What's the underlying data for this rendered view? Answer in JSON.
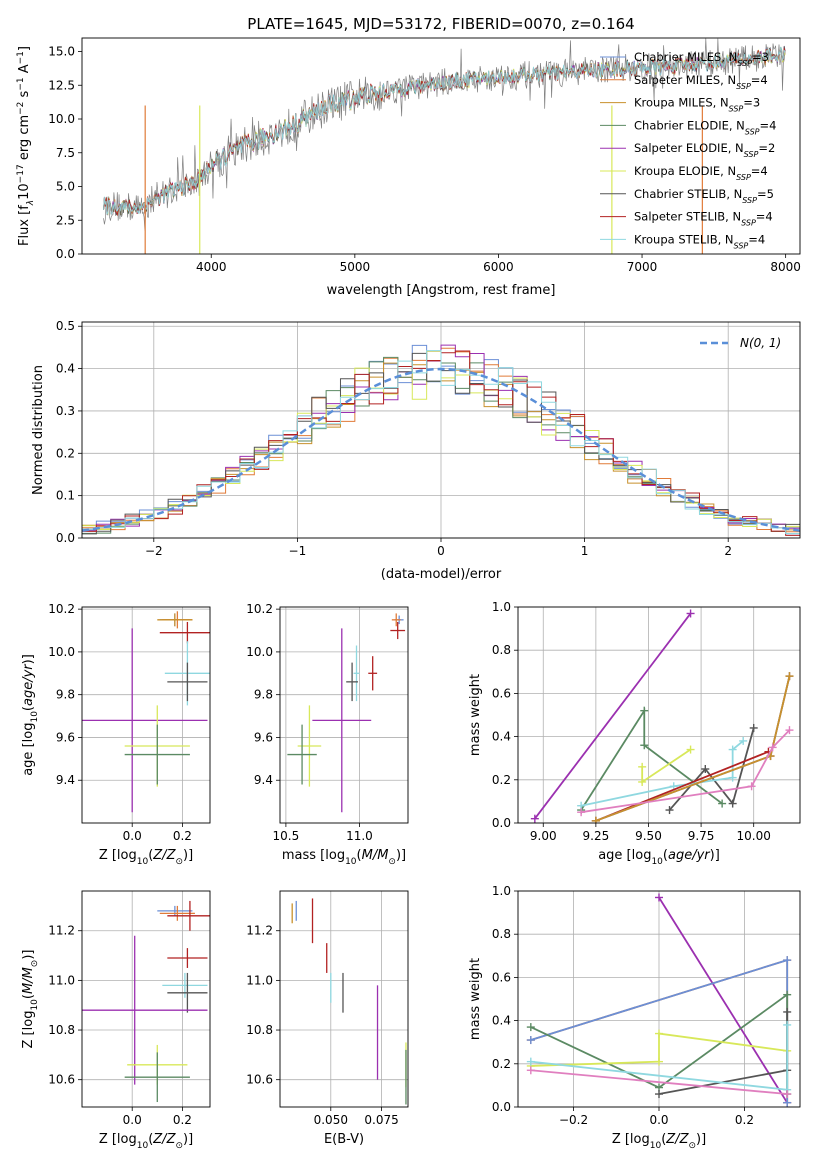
{
  "figure_title": "PLATE=1645, MJD=53172, FIBERID=0070, z=0.164",
  "series": [
    {
      "key": "chab_miles",
      "label": "Chabrier MILES, N",
      "sub": "SSP",
      "n": "=3",
      "color": "#6b8fd6"
    },
    {
      "key": "salp_miles",
      "label": "Salpeter MILES, N",
      "sub": "SSP",
      "n": "=4",
      "color": "#e07b39"
    },
    {
      "key": "krou_miles",
      "label": "Kroupa MILES, N",
      "sub": "SSP",
      "n": "=3",
      "color": "#c8902c"
    },
    {
      "key": "chab_elodie",
      "label": "Chabrier ELODIE, N",
      "sub": "SSP",
      "n": "=4",
      "color": "#5b8a63"
    },
    {
      "key": "salp_elodie",
      "label": "Salpeter ELODIE, N",
      "sub": "SSP",
      "n": "=2",
      "color": "#9b30b0"
    },
    {
      "key": "krou_elodie",
      "label": "Kroupa ELODIE, N",
      "sub": "SSP",
      "n": "=4",
      "color": "#d8e85a"
    },
    {
      "key": "chab_stelib",
      "label": "Chabrier STELIB, N",
      "sub": "SSP",
      "n": "=5",
      "color": "#555555"
    },
    {
      "key": "salp_stelib",
      "label": "Salpeter STELIB, N",
      "sub": "SSP",
      "n": "=4",
      "color": "#b22222"
    },
    {
      "key": "krou_stelib",
      "label": "Kroupa STELIB, N",
      "sub": "SSP",
      "n": "=4",
      "color": "#8fd8e0"
    }
  ],
  "chart_data": [
    {
      "id": "spectrum",
      "type": "line",
      "xlabel": "wavelength [Angstrom, rest frame]",
      "ylabel": "Flux [f",
      "xlim": [
        3100,
        8100
      ],
      "ylim": [
        0,
        16
      ],
      "xticks": [
        4000,
        5000,
        6000,
        7000,
        8000
      ],
      "yticks": [
        0.0,
        2.5,
        5.0,
        7.5,
        10.0,
        12.5,
        15.0
      ],
      "grid": false,
      "legend": "right",
      "data_color": "#808080",
      "continuum": [
        [
          3250,
          3.6
        ],
        [
          3500,
          3.4
        ],
        [
          3700,
          4.6
        ],
        [
          3900,
          5.3
        ],
        [
          4000,
          6.6
        ],
        [
          4200,
          7.9
        ],
        [
          4500,
          9.2
        ],
        [
          4800,
          10.9
        ],
        [
          5000,
          11.6
        ],
        [
          5300,
          12.2
        ],
        [
          5600,
          12.7
        ],
        [
          6000,
          13.1
        ],
        [
          6400,
          13.4
        ],
        [
          6800,
          13.7
        ],
        [
          7200,
          13.9
        ],
        [
          7600,
          14.3
        ],
        [
          8000,
          14.8
        ]
      ]
    },
    {
      "id": "residuals",
      "type": "histogram",
      "xlabel": "(data-model)/error",
      "ylabel": "Normed distribution",
      "xlim": [
        -2.5,
        2.5
      ],
      "ylim": [
        0,
        0.51
      ],
      "xticks": [
        -2,
        -1,
        0,
        1,
        2
      ],
      "yticks": [
        0.0,
        0.1,
        0.2,
        0.3,
        0.4,
        0.5
      ],
      "grid": true,
      "legend": "top-right",
      "legend_label": "N(0, 1)",
      "reference_color": "#5a8fd8",
      "bin_width": 0.1,
      "bin_start": -2.5
    },
    {
      "id": "age_vs_Z",
      "type": "errorbar",
      "xlabel": "Z [log",
      "ylabel": "age [log",
      "xlim": [
        -0.2,
        0.31
      ],
      "ylim": [
        9.2,
        10.21
      ],
      "xticks": [
        0.0,
        0.2
      ],
      "yticks": [
        9.4,
        9.6,
        9.8,
        10.0,
        10.2
      ],
      "grid": true,
      "points": [
        {
          "s": "chab_miles",
          "x": 0.17,
          "y": 10.15,
          "xerr": 0.06,
          "yerr": 0.03
        },
        {
          "s": "salp_miles",
          "x": 0.18,
          "y": 10.15,
          "xerr": 0.06,
          "yerr": 0.04
        },
        {
          "s": "krou_miles",
          "x": 0.17,
          "y": 10.15,
          "xerr": 0.07,
          "yerr": 0.03
        },
        {
          "s": "salp_stelib",
          "x": 0.22,
          "y": 10.09,
          "xerr": 0.11,
          "yerr": 0.05
        },
        {
          "s": "krou_stelib",
          "x": 0.22,
          "y": 9.9,
          "xerr": 0.09,
          "yerr": 0.15
        },
        {
          "s": "chab_stelib",
          "x": 0.22,
          "y": 9.86,
          "xerr": 0.08,
          "yerr": 0.09
        },
        {
          "s": "salp_elodie",
          "x": 0.0,
          "y": 9.68,
          "xerr": 0.3,
          "yerr": 0.43
        },
        {
          "s": "krou_elodie",
          "x": 0.1,
          "y": 9.56,
          "xerr": 0.13,
          "yerr": 0.19
        },
        {
          "s": "chab_elodie",
          "x": 0.1,
          "y": 9.52,
          "xerr": 0.13,
          "yerr": 0.14
        }
      ]
    },
    {
      "id": "age_vs_mass",
      "type": "errorbar",
      "xlabel": "mass [log",
      "xlim": [
        10.46,
        11.33
      ],
      "ylim": [
        9.2,
        10.21
      ],
      "xticks": [
        10.5,
        11.0
      ],
      "yticks": [
        9.4,
        9.6,
        9.8,
        10.0,
        10.2
      ],
      "grid": true,
      "points": [
        {
          "s": "chab_miles",
          "x": 11.27,
          "y": 10.15,
          "xerr": 0.03,
          "yerr": 0.02
        },
        {
          "s": "salp_miles",
          "x": 11.25,
          "y": 10.15,
          "xerr": 0.03,
          "yerr": 0.03
        },
        {
          "s": "salp_stelib",
          "x": 11.26,
          "y": 10.1,
          "xerr": 0.05,
          "yerr": 0.04
        },
        {
          "s": "krou_stelib",
          "x": 10.98,
          "y": 9.9,
          "xerr": 0.02,
          "yerr": 0.13
        },
        {
          "s": "salp_stelib",
          "x": 11.09,
          "y": 9.9,
          "xerr": 0.03,
          "yerr": 0.08
        },
        {
          "s": "chab_stelib",
          "x": 10.95,
          "y": 9.86,
          "xerr": 0.04,
          "yerr": 0.09
        },
        {
          "s": "salp_elodie",
          "x": 10.88,
          "y": 9.68,
          "xerr": 0.2,
          "yerr": 0.43
        },
        {
          "s": "krou_elodie",
          "x": 10.66,
          "y": 9.56,
          "xerr": 0.08,
          "yerr": 0.19
        },
        {
          "s": "chab_elodie",
          "x": 10.61,
          "y": 9.52,
          "xerr": 0.1,
          "yerr": 0.14
        }
      ]
    },
    {
      "id": "weight_vs_age",
      "type": "line",
      "xlabel": "age  [log",
      "ylabel": "mass weight",
      "xlim": [
        8.88,
        10.22
      ],
      "ylim": [
        0,
        1.0
      ],
      "xticks": [
        9.0,
        9.25,
        9.5,
        9.75,
        10.0
      ],
      "yticks": [
        0.0,
        0.2,
        0.4,
        0.6,
        0.8,
        1.0
      ],
      "grid": true,
      "lines": [
        {
          "s": "salp_elodie",
          "pts": [
            [
              8.96,
              0.02
            ],
            [
              9.7,
              0.97
            ]
          ]
        },
        {
          "s": "chab_elodie",
          "pts": [
            [
              9.18,
              0.06
            ],
            [
              9.48,
              0.52
            ],
            [
              9.48,
              0.36
            ],
            [
              9.85,
              0.09
            ]
          ]
        },
        {
          "s": "krou_elodie",
          "pts": [
            [
              9.47,
              0.26
            ],
            [
              9.47,
              0.19
            ],
            [
              9.7,
              0.34
            ]
          ]
        },
        {
          "s": "chab_stelib",
          "pts": [
            [
              9.6,
              0.06
            ],
            [
              9.77,
              0.25
            ],
            [
              9.9,
              0.09
            ],
            [
              10.0,
              0.44
            ]
          ]
        },
        {
          "s": "krou_stelib",
          "pts": [
            [
              9.18,
              0.08
            ],
            [
              9.62,
              0.17
            ],
            [
              9.9,
              0.21
            ],
            [
              9.9,
              0.34
            ],
            [
              9.95,
              0.38
            ]
          ]
        },
        {
          "s": "salp_stelib",
          "pts": [
            [
              9.25,
              0.01
            ],
            [
              10.07,
              0.33
            ]
          ]
        },
        {
          "s": "salp_miles",
          "pts": [
            [
              9.25,
              0.01
            ],
            [
              10.08,
              0.31
            ],
            [
              10.17,
              0.68
            ]
          ]
        },
        {
          "s": "chab_miles",
          "pts": [
            [
              9.25,
              0.01
            ],
            [
              10.08,
              0.31
            ],
            [
              10.17,
              0.68
            ]
          ]
        },
        {
          "s": "krou_miles",
          "pts": [
            [
              9.25,
              0.01
            ],
            [
              10.08,
              0.31
            ],
            [
              10.17,
              0.68
            ]
          ]
        },
        {
          "s": "salp_stelib",
          "pts": [
            [
              9.18,
              0.05
            ],
            [
              9.99,
              0.17
            ],
            [
              10.09,
              0.35
            ],
            [
              10.17,
              0.43
            ]
          ],
          "color": "#e07fbf"
        }
      ]
    },
    {
      "id": "mass_vs_Z",
      "type": "errorbar",
      "xlabel": "Z [log",
      "ylabel": "mass [log",
      "xlim": [
        -0.2,
        0.31
      ],
      "ylim": [
        10.49,
        11.36
      ],
      "xticks": [
        0.0,
        0.2
      ],
      "yticks": [
        10.6,
        10.8,
        11.0,
        11.2
      ],
      "grid": true,
      "points": [
        {
          "s": "chab_miles",
          "x": 0.17,
          "y": 11.28,
          "xerr": 0.07,
          "yerr": 0.02
        },
        {
          "s": "salp_miles",
          "x": 0.18,
          "y": 11.27,
          "xerr": 0.07,
          "yerr": 0.03
        },
        {
          "s": "salp_stelib",
          "x": 0.23,
          "y": 11.26,
          "xerr": 0.09,
          "yerr": 0.06
        },
        {
          "s": "salp_stelib",
          "x": 0.22,
          "y": 11.09,
          "xerr": 0.08,
          "yerr": 0.04
        },
        {
          "s": "krou_stelib",
          "x": 0.21,
          "y": 10.98,
          "xerr": 0.09,
          "yerr": 0.05
        },
        {
          "s": "chab_stelib",
          "x": 0.22,
          "y": 10.95,
          "xerr": 0.08,
          "yerr": 0.08
        },
        {
          "s": "salp_elodie",
          "x": 0.01,
          "y": 10.88,
          "xerr": 0.29,
          "yerr": 0.3
        },
        {
          "s": "krou_elodie",
          "x": 0.1,
          "y": 10.66,
          "xerr": 0.12,
          "yerr": 0.08
        },
        {
          "s": "chab_elodie",
          "x": 0.1,
          "y": 10.61,
          "xerr": 0.13,
          "yerr": 0.1
        }
      ]
    },
    {
      "id": "mass_vs_ebv",
      "type": "errorbar",
      "xlabel": "E(B-V)",
      "xlim": [
        0.025,
        0.088
      ],
      "ylim": [
        10.49,
        11.36
      ],
      "xticks": [
        0.05,
        0.075
      ],
      "yticks": [
        10.6,
        10.8,
        11.0,
        11.2
      ],
      "grid": true,
      "points": [
        {
          "s": "krou_miles",
          "x": 0.031,
          "y": 11.27,
          "xerr": 0,
          "yerr": 0.04
        },
        {
          "s": "chab_miles",
          "x": 0.033,
          "y": 11.28,
          "xerr": 0,
          "yerr": 0.04
        },
        {
          "s": "salp_stelib",
          "x": 0.041,
          "y": 11.24,
          "xerr": 0,
          "yerr": 0.09
        },
        {
          "s": "salp_stelib",
          "x": 0.048,
          "y": 11.09,
          "xerr": 0,
          "yerr": 0.06
        },
        {
          "s": "krou_stelib",
          "x": 0.05,
          "y": 10.97,
          "xerr": 0,
          "yerr": 0.06
        },
        {
          "s": "chab_stelib",
          "x": 0.056,
          "y": 10.95,
          "xerr": 0,
          "yerr": 0.08
        },
        {
          "s": "salp_elodie",
          "x": 0.073,
          "y": 10.79,
          "xerr": 0,
          "yerr": 0.19
        },
        {
          "s": "krou_elodie",
          "x": 0.087,
          "y": 10.66,
          "xerr": 0,
          "yerr": 0.09
        },
        {
          "s": "chab_elodie",
          "x": 0.087,
          "y": 10.61,
          "xerr": 0,
          "yerr": 0.11
        }
      ]
    },
    {
      "id": "weight_vs_Z",
      "type": "line",
      "xlabel": "Z [log",
      "ylabel": "mass weight",
      "xlim": [
        -0.33,
        0.33
      ],
      "ylim": [
        0,
        1.0
      ],
      "xticks": [
        -0.2,
        0.0,
        0.2
      ],
      "yticks": [
        0.0,
        0.2,
        0.4,
        0.6,
        0.8,
        1.0
      ],
      "grid": true,
      "lines": [
        {
          "s": "salp_elodie",
          "pts": [
            [
              0.0,
              0.97
            ],
            [
              0.3,
              0.02
            ]
          ]
        },
        {
          "s": "salp_miles",
          "pts": [
            [
              -0.3,
              0.31
            ],
            [
              0.3,
              0.68
            ],
            [
              0.3,
              0.02
            ]
          ]
        },
        {
          "s": "chab_miles",
          "pts": [
            [
              -0.3,
              0.31
            ],
            [
              0.3,
              0.68
            ],
            [
              0.3,
              0.02
            ]
          ]
        },
        {
          "s": "chab_elodie",
          "pts": [
            [
              -0.3,
              0.37
            ],
            [
              0.0,
              0.09
            ],
            [
              0.3,
              0.52
            ],
            [
              0.3,
              0.06
            ]
          ]
        },
        {
          "s": "krou_elodie",
          "pts": [
            [
              -0.3,
              0.19
            ],
            [
              0.0,
              0.21
            ],
            [
              0.0,
              0.34
            ],
            [
              0.3,
              0.26
            ]
          ]
        },
        {
          "s": "chab_stelib",
          "pts": [
            [
              0.0,
              0.06
            ],
            [
              0.3,
              0.17
            ],
            [
              0.3,
              0.44
            ]
          ]
        },
        {
          "s": "krou_stelib",
          "pts": [
            [
              -0.3,
              0.21
            ],
            [
              0.3,
              0.08
            ],
            [
              0.3,
              0.38
            ]
          ]
        },
        {
          "s": "salp_stelib",
          "pts": [
            [
              -0.3,
              0.17
            ],
            [
              0.3,
              0.06
            ]
          ],
          "color": "#e07fbf"
        }
      ]
    }
  ]
}
